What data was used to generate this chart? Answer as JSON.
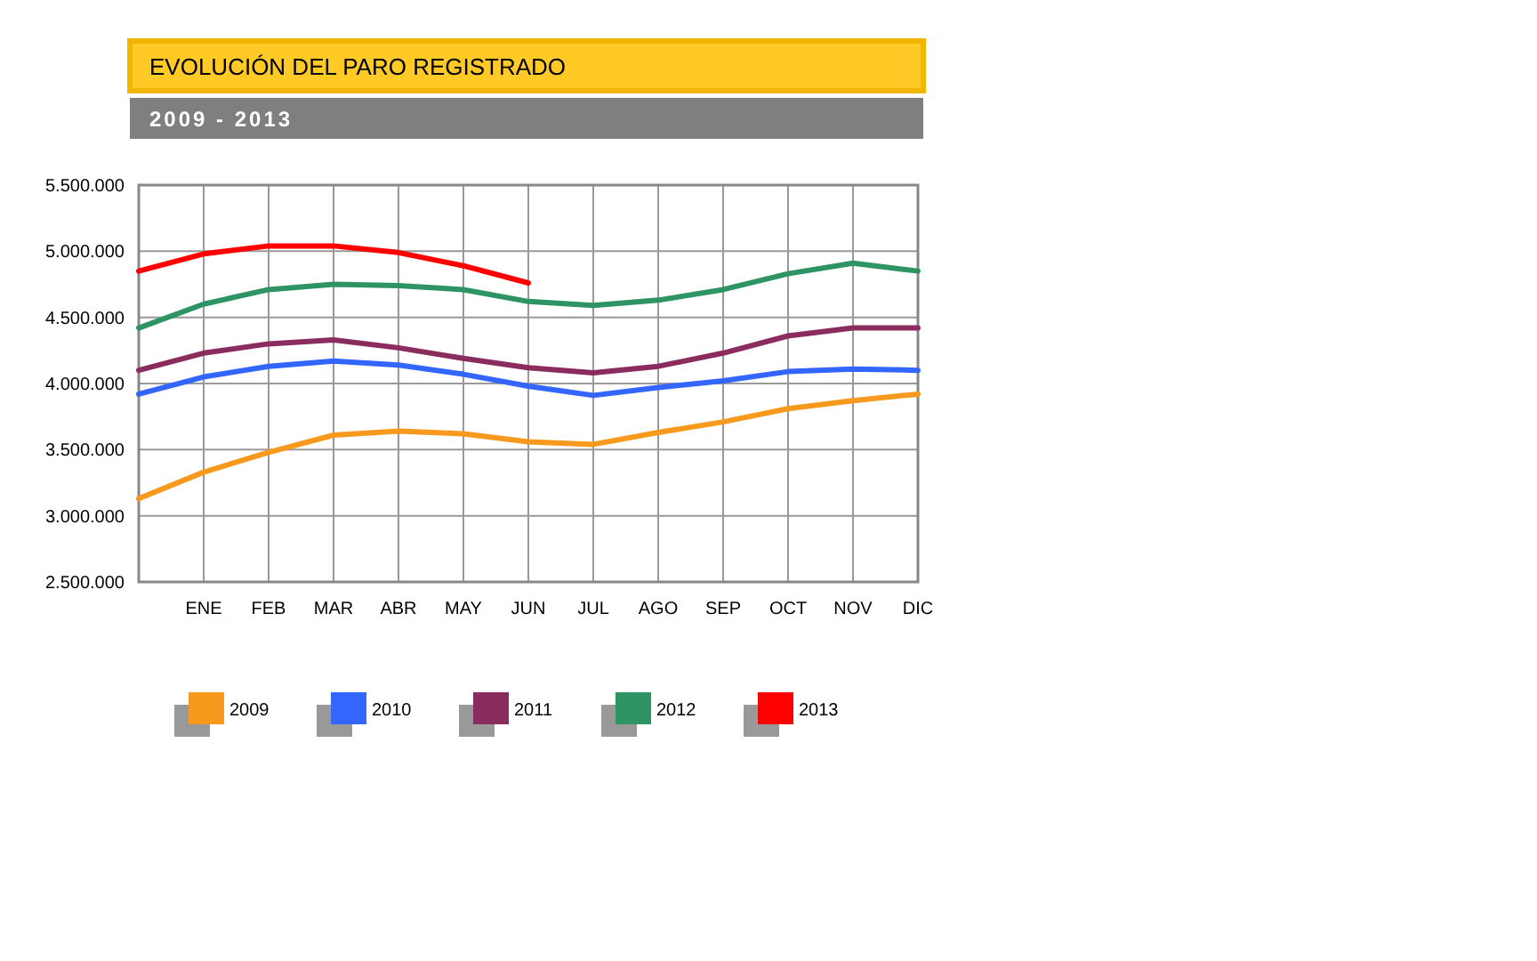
{
  "chart_data": {
    "type": "line",
    "title": "EVOLUCIÓN DEL PARO REGISTRADO",
    "subtitle": "2009 - 2013",
    "categories": [
      null,
      "ENE",
      "FEB",
      "MAR",
      "ABR",
      "MAY",
      "JUN",
      "JUL",
      "AGO",
      "SEP",
      "OCT",
      "NOV",
      "DIC"
    ],
    "series": [
      {
        "name": "2009",
        "color": "#f7991c",
        "values": [
          3130000,
          3330000,
          3480000,
          3610000,
          3640000,
          3620000,
          3560000,
          3540000,
          3630000,
          3710000,
          3810000,
          3870000,
          3920000
        ]
      },
      {
        "name": "2010",
        "color": "#3366ff",
        "values": [
          3920000,
          4050000,
          4130000,
          4170000,
          4140000,
          4070000,
          3980000,
          3910000,
          3970000,
          4020000,
          4090000,
          4110000,
          4100000
        ]
      },
      {
        "name": "2011",
        "color": "#8b2c5e",
        "values": [
          4100000,
          4230000,
          4300000,
          4330000,
          4270000,
          4190000,
          4120000,
          4080000,
          4130000,
          4230000,
          4360000,
          4420000,
          4420000
        ]
      },
      {
        "name": "2012",
        "color": "#2e9463",
        "values": [
          4420000,
          4600000,
          4710000,
          4750000,
          4740000,
          4710000,
          4620000,
          4590000,
          4630000,
          4710000,
          4830000,
          4910000,
          4850000
        ]
      },
      {
        "name": "2013",
        "color": "#ff0000",
        "values": [
          4850000,
          4980000,
          5040000,
          5040000,
          4990000,
          4890000,
          4760000,
          null,
          null,
          null,
          null,
          null,
          null
        ]
      }
    ],
    "ylim": [
      2500000,
      5500000
    ],
    "yticks": [
      {
        "value": 2500000,
        "label": "2.500.000"
      },
      {
        "value": 3000000,
        "label": "3.000.000"
      },
      {
        "value": 3500000,
        "label": "3.500.000"
      },
      {
        "value": 4000000,
        "label": "4.000.000"
      },
      {
        "value": 4500000,
        "label": "4.500.000"
      },
      {
        "value": 5000000,
        "label": "5.000.000"
      },
      {
        "value": 5500000,
        "label": "5.500.000"
      }
    ],
    "grid": true,
    "legend": "bottom",
    "marker": "none",
    "line_style": "solid"
  }
}
